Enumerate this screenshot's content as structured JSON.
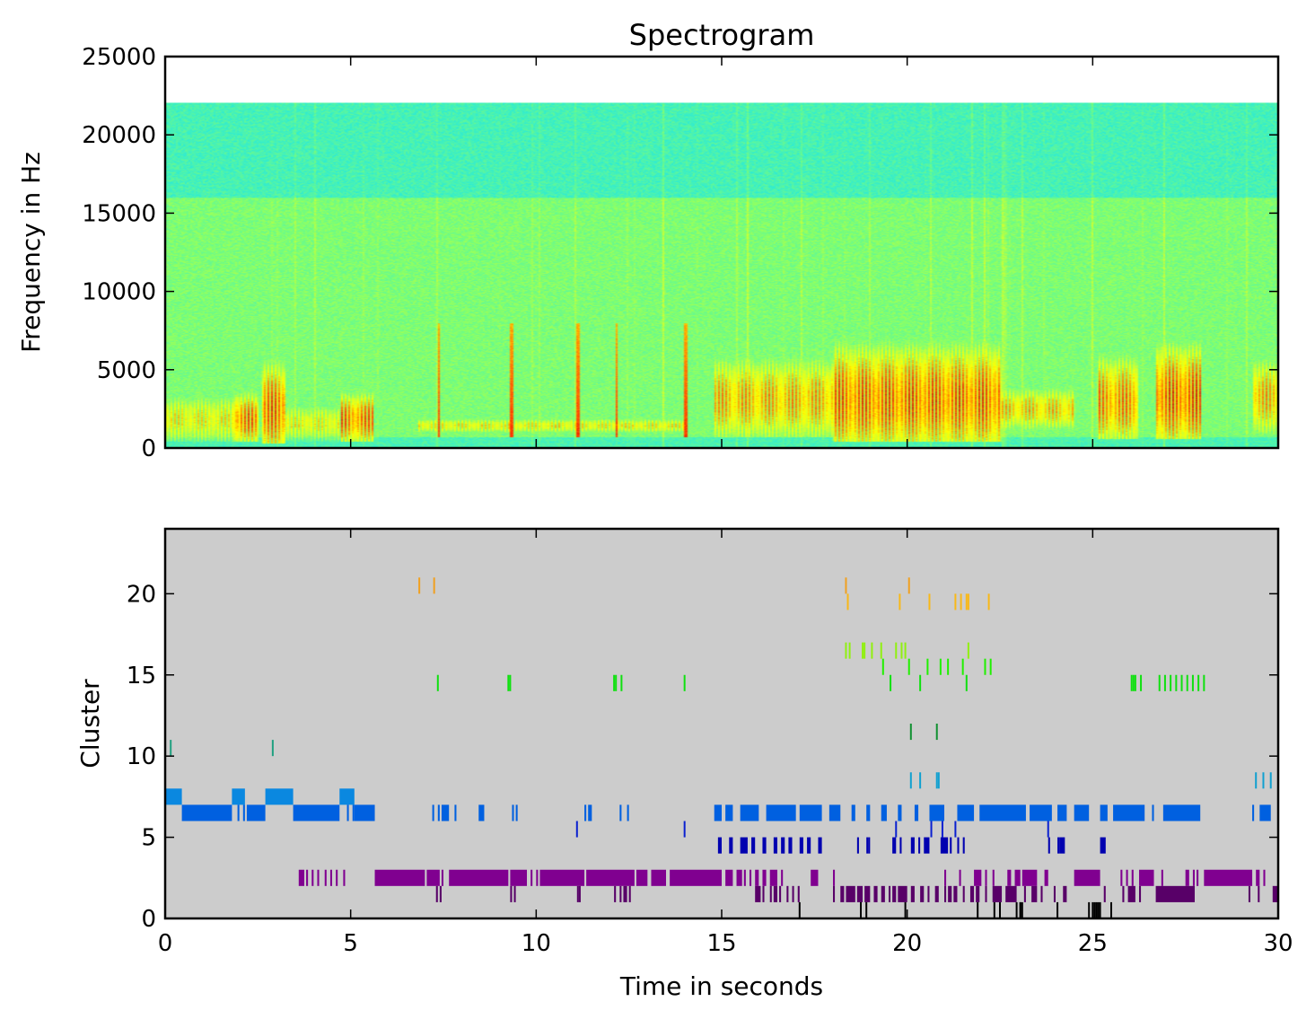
{
  "chart_data": [
    {
      "type": "heatmap",
      "title": "Spectrogram",
      "xlabel": "",
      "ylabel": "Frequency in Hz",
      "xlim": [
        0,
        30
      ],
      "ylim": [
        0,
        25000
      ],
      "yticks": [
        0,
        5000,
        10000,
        15000,
        20000,
        25000
      ],
      "ytick_labels": [
        "0",
        "5000",
        "10000",
        "15000",
        "20000",
        "25000"
      ],
      "xticks": [
        0,
        5,
        10,
        15,
        20,
        25,
        30
      ],
      "max_frequency_hz": 22050,
      "band_split_hz": 16000,
      "colormap": [
        "#00e0ff",
        "#40f0c0",
        "#80ff70",
        "#d0ff30",
        "#ffff00",
        "#ffa000",
        "#ff4000",
        "#c00000"
      ],
      "background_low_freq_hz": 700,
      "sound_events": [
        {
          "t0": 0.0,
          "t1": 1.8,
          "f0": 700,
          "f1": 3000,
          "level": 0.62
        },
        {
          "t0": 1.8,
          "t1": 2.5,
          "f0": 700,
          "f1": 3000,
          "level": 0.85
        },
        {
          "t0": 2.6,
          "t1": 3.2,
          "f0": 500,
          "f1": 4500,
          "level": 0.88
        },
        {
          "t0": 3.2,
          "t1": 4.7,
          "f0": 700,
          "f1": 2500,
          "level": 0.6
        },
        {
          "t0": 4.7,
          "t1": 5.6,
          "f0": 700,
          "f1": 3000,
          "level": 0.85
        },
        {
          "t0": 6.8,
          "t1": 14.0,
          "f0": 1100,
          "f1": 1800,
          "level": 0.62
        },
        {
          "t0": 14.8,
          "t1": 18.0,
          "f0": 1200,
          "f1": 5000,
          "level": 0.75
        },
        {
          "t0": 18.0,
          "t1": 22.5,
          "f0": 700,
          "f1": 5500,
          "level": 0.88
        },
        {
          "t0": 22.5,
          "t1": 24.5,
          "f0": 1500,
          "f1": 3500,
          "level": 0.7
        },
        {
          "t0": 25.1,
          "t1": 26.2,
          "f0": 1000,
          "f1": 5000,
          "level": 0.82
        },
        {
          "t0": 26.7,
          "t1": 27.9,
          "f0": 1000,
          "f1": 5500,
          "level": 0.9
        },
        {
          "t0": 29.3,
          "t1": 30.0,
          "f0": 1500,
          "f1": 5000,
          "level": 0.75
        }
      ],
      "clicks": [
        7.35,
        9.3,
        11.1,
        12.15,
        14.0
      ]
    },
    {
      "type": "scatter",
      "title": "",
      "xlabel": "Time in seconds",
      "ylabel": "Cluster",
      "xlim": [
        0,
        30
      ],
      "ylim": [
        0,
        24
      ],
      "xticks": [
        0,
        5,
        10,
        15,
        20,
        25,
        30
      ],
      "xtick_labels": [
        "0",
        "5",
        "10",
        "15",
        "20",
        "25",
        "30"
      ],
      "yticks": [
        0,
        5,
        10,
        15,
        20
      ],
      "ytick_labels": [
        "0",
        "5",
        "10",
        "15",
        "20"
      ],
      "background": "#cccccc",
      "series": [
        {
          "name": "cluster 20",
          "cluster": 20,
          "color": "#f0a020",
          "times": [
            6.85,
            7.25,
            18.35,
            20.05
          ]
        },
        {
          "name": "cluster 19",
          "cluster": 19,
          "color": "#f8b818",
          "times": [
            18.4,
            19.8,
            20.6,
            21.3,
            21.45,
            21.6,
            21.65,
            22.2
          ]
        },
        {
          "name": "cluster 16",
          "cluster": 16,
          "color": "#90f010",
          "times": [
            18.35,
            18.45,
            18.8,
            18.85,
            19.05,
            19.3,
            19.7,
            19.85,
            19.95,
            21.65
          ]
        },
        {
          "name": "cluster 15",
          "cluster": 15,
          "color": "#20f000",
          "times": [
            19.35,
            20.05,
            20.55,
            20.9,
            21.1,
            21.5,
            22.1,
            22.25
          ]
        },
        {
          "name": "cluster 14",
          "cluster": 14,
          "color": "#10e010",
          "times": [
            7.35,
            9.25,
            9.3,
            12.1,
            12.15,
            12.3,
            14.0,
            19.55,
            20.35,
            21.6,
            26.05,
            26.1,
            26.15,
            26.3,
            26.8,
            26.95,
            27.1,
            27.25,
            27.4,
            27.55,
            27.7,
            27.85,
            28.0
          ]
        },
        {
          "name": "cluster 11",
          "cluster": 11,
          "color": "#109030",
          "times": [
            20.1,
            20.8
          ]
        },
        {
          "name": "cluster 10",
          "cluster": 10,
          "color": "#20a080",
          "times": [
            0.15,
            2.9
          ]
        },
        {
          "name": "cluster 8",
          "cluster": 8,
          "color": "#10a0d0",
          "times": [
            20.1,
            20.35,
            20.8,
            20.85,
            29.4,
            29.6,
            29.8
          ]
        },
        {
          "name": "cluster 7",
          "cluster": 7,
          "color": "#0a88e0",
          "segments": [
            [
              0.0,
              0.45
            ],
            [
              1.8,
              2.15
            ],
            [
              2.7,
              3.45
            ],
            [
              4.7,
              5.1
            ]
          ]
        },
        {
          "name": "cluster 6",
          "cluster": 6,
          "color": "#0060e0",
          "segments": [
            [
              0.45,
              1.8
            ],
            [
              1.95,
              2.0
            ],
            [
              2.1,
              2.15
            ],
            [
              2.2,
              2.7
            ],
            [
              3.45,
              4.7
            ],
            [
              4.9,
              4.95
            ],
            [
              5.05,
              5.1
            ],
            [
              5.1,
              5.65
            ],
            [
              7.2,
              7.25
            ],
            [
              7.35,
              7.4
            ],
            [
              7.45,
              7.65
            ],
            [
              7.8,
              7.85
            ],
            [
              8.45,
              8.6
            ],
            [
              9.35,
              9.4
            ],
            [
              9.45,
              9.5
            ],
            [
              11.3,
              11.35
            ],
            [
              11.4,
              11.5
            ],
            [
              12.25,
              12.3
            ],
            [
              12.45,
              12.5
            ],
            [
              14.8,
              15.0
            ],
            [
              15.1,
              15.3
            ],
            [
              15.5,
              16.0
            ],
            [
              16.2,
              17.0
            ],
            [
              17.1,
              17.7
            ],
            [
              17.9,
              18.2
            ],
            [
              18.5,
              18.6
            ],
            [
              18.9,
              19.0
            ],
            [
              19.3,
              19.45
            ],
            [
              19.75,
              19.85
            ],
            [
              20.2,
              20.3
            ],
            [
              20.6,
              21.0
            ],
            [
              21.35,
              21.8
            ],
            [
              21.95,
              23.2
            ],
            [
              23.3,
              23.9
            ],
            [
              24.05,
              24.3
            ],
            [
              24.5,
              24.9
            ],
            [
              25.2,
              25.4
            ],
            [
              25.55,
              26.4
            ],
            [
              26.6,
              26.65
            ],
            [
              26.9,
              27.9
            ],
            [
              29.3,
              29.35
            ],
            [
              29.5,
              29.8
            ]
          ]
        },
        {
          "name": "cluster 5",
          "cluster": 5,
          "color": "#0a20d0",
          "times": [
            11.1,
            14.0,
            19.7,
            20.65,
            20.95,
            21.3,
            23.8
          ]
        },
        {
          "name": "cluster 4",
          "cluster": 4,
          "color": "#0000b0",
          "segments": [
            [
              14.9,
              15.0
            ],
            [
              15.2,
              15.3
            ],
            [
              15.5,
              15.7
            ],
            [
              15.8,
              15.9
            ],
            [
              16.1,
              16.2
            ],
            [
              16.4,
              16.5
            ],
            [
              16.6,
              16.7
            ],
            [
              16.8,
              16.9
            ],
            [
              17.1,
              17.2
            ],
            [
              17.3,
              17.4
            ],
            [
              17.6,
              17.7
            ],
            [
              18.65,
              18.7
            ],
            [
              18.9,
              18.95
            ],
            [
              18.95,
              19.0
            ],
            [
              19.6,
              19.7
            ],
            [
              19.8,
              19.85
            ],
            [
              20.1,
              20.2
            ],
            [
              20.3,
              20.35
            ],
            [
              20.45,
              20.6
            ],
            [
              20.9,
              21.1
            ],
            [
              21.15,
              21.2
            ],
            [
              21.35,
              21.4
            ],
            [
              21.5,
              21.55
            ],
            [
              23.8,
              23.85
            ],
            [
              24.05,
              24.1
            ],
            [
              24.1,
              24.25
            ],
            [
              25.2,
              25.35
            ]
          ]
        },
        {
          "name": "cluster 2",
          "cluster": 2,
          "color": "#800090",
          "segments": [
            [
              3.6,
              3.75
            ],
            [
              3.8,
              3.85
            ],
            [
              3.95,
              4.0
            ],
            [
              4.1,
              4.15
            ],
            [
              4.3,
              4.35
            ],
            [
              4.45,
              4.5
            ],
            [
              4.6,
              4.65
            ],
            [
              4.8,
              4.85
            ],
            [
              5.65,
              7.0
            ],
            [
              7.05,
              7.4
            ],
            [
              7.45,
              7.5
            ],
            [
              7.65,
              9.25
            ],
            [
              9.3,
              9.75
            ],
            [
              9.85,
              9.9
            ],
            [
              10.0,
              10.05
            ],
            [
              10.1,
              11.3
            ],
            [
              11.35,
              12.65
            ],
            [
              12.7,
              13.0
            ],
            [
              13.1,
              13.5
            ],
            [
              13.6,
              15.0
            ],
            [
              15.1,
              15.3
            ],
            [
              15.4,
              15.55
            ],
            [
              15.6,
              15.65
            ],
            [
              15.75,
              15.8
            ],
            [
              15.9,
              16.0
            ],
            [
              16.1,
              16.2
            ],
            [
              16.3,
              16.5
            ],
            [
              16.6,
              16.65
            ],
            [
              17.4,
              17.6
            ],
            [
              18.0,
              18.05
            ],
            [
              21.0,
              21.05
            ],
            [
              21.4,
              21.45
            ],
            [
              21.8,
              22.0
            ],
            [
              22.1,
              22.15
            ],
            [
              22.3,
              22.35
            ],
            [
              22.7,
              22.8
            ],
            [
              22.9,
              23.05
            ],
            [
              23.1,
              23.5
            ],
            [
              23.7,
              23.8
            ],
            [
              24.5,
              25.2
            ],
            [
              25.75,
              25.8
            ],
            [
              25.9,
              25.95
            ],
            [
              26.05,
              26.1
            ],
            [
              26.25,
              26.65
            ],
            [
              26.85,
              26.9
            ],
            [
              27.5,
              27.6
            ],
            [
              27.7,
              27.75
            ],
            [
              27.8,
              27.85
            ],
            [
              28.0,
              29.3
            ],
            [
              29.4,
              29.5
            ],
            [
              29.6,
              29.65
            ]
          ]
        },
        {
          "name": "cluster 1",
          "cluster": 1,
          "color": "#580068",
          "segments": [
            [
              7.3,
              7.35
            ],
            [
              7.4,
              7.45
            ],
            [
              9.3,
              9.35
            ],
            [
              9.4,
              9.45
            ],
            [
              11.1,
              11.15
            ],
            [
              11.15,
              11.2
            ],
            [
              12.1,
              12.15
            ],
            [
              12.25,
              12.3
            ],
            [
              12.35,
              12.45
            ],
            [
              12.5,
              12.55
            ],
            [
              15.9,
              16.05
            ],
            [
              16.1,
              16.15
            ],
            [
              16.3,
              16.35
            ],
            [
              16.4,
              16.5
            ],
            [
              16.55,
              16.6
            ],
            [
              16.75,
              16.8
            ],
            [
              16.9,
              16.95
            ],
            [
              17.05,
              17.1
            ],
            [
              18.0,
              18.05
            ],
            [
              18.2,
              18.3
            ],
            [
              18.35,
              18.6
            ],
            [
              18.65,
              18.8
            ],
            [
              18.85,
              19.0
            ],
            [
              19.1,
              19.2
            ],
            [
              19.3,
              19.4
            ],
            [
              19.5,
              19.55
            ],
            [
              19.6,
              19.7
            ],
            [
              19.75,
              20.0
            ],
            [
              20.1,
              20.2
            ],
            [
              20.35,
              20.45
            ],
            [
              20.55,
              20.6
            ],
            [
              20.75,
              20.85
            ],
            [
              21.0,
              21.05
            ],
            [
              21.1,
              21.2
            ],
            [
              21.25,
              21.35
            ],
            [
              21.5,
              21.55
            ],
            [
              21.7,
              21.8
            ],
            [
              21.85,
              21.95
            ],
            [
              22.1,
              22.15
            ],
            [
              22.3,
              22.55
            ],
            [
              22.65,
              22.95
            ],
            [
              23.15,
              23.2
            ],
            [
              23.35,
              23.5
            ],
            [
              23.6,
              23.65
            ],
            [
              23.95,
              24.0
            ],
            [
              24.2,
              24.3
            ],
            [
              25.3,
              25.35
            ],
            [
              25.8,
              25.85
            ],
            [
              25.95,
              26.15
            ],
            [
              26.25,
              26.3
            ],
            [
              26.7,
              27.75
            ],
            [
              29.2,
              29.25
            ],
            [
              29.45,
              29.5
            ],
            [
              29.85,
              30.0
            ]
          ]
        },
        {
          "name": "cluster 0",
          "cluster": 0,
          "color": "#000000",
          "times": [
            17.1,
            18.75,
            18.9,
            19.95,
            21.9,
            22.35,
            22.5,
            22.95,
            23.05,
            23.05,
            23.1,
            24.05,
            24.9,
            25.0,
            25.05,
            25.1,
            25.15,
            25.2,
            25.5
          ]
        }
      ]
    }
  ]
}
